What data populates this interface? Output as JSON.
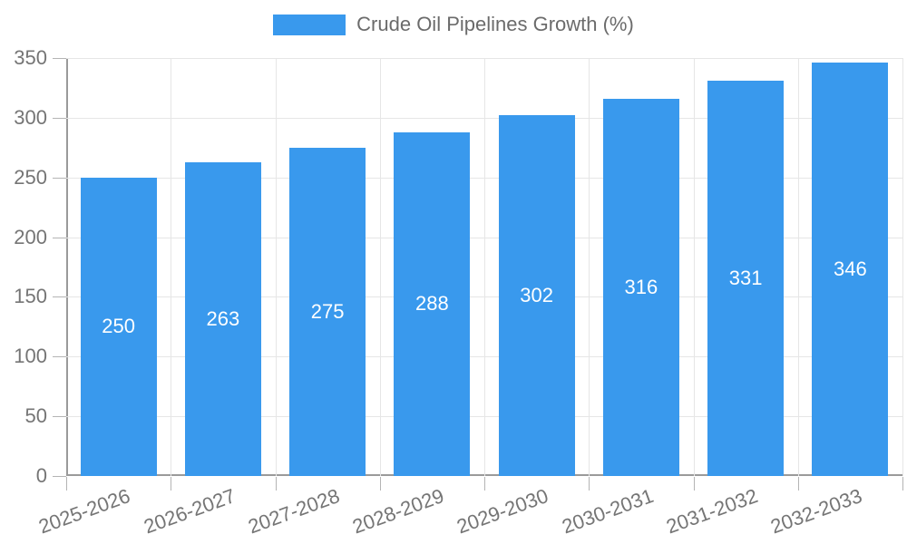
{
  "chart_data": {
    "type": "bar",
    "title": "Crude Oil Pipelines Growth (%)",
    "categories": [
      "2025-2026",
      "2026-2027",
      "2027-2028",
      "2028-2029",
      "2029-2030",
      "2030-2031",
      "2031-2032",
      "2032-2033"
    ],
    "values": [
      250,
      263,
      275,
      288,
      302,
      316,
      331,
      346
    ],
    "xlabel": "",
    "ylabel": "",
    "ylim": [
      0,
      350
    ],
    "ytick_step": 50,
    "yticks": [
      0,
      50,
      100,
      150,
      200,
      250,
      300,
      350
    ],
    "grid": true,
    "legend_position": "top",
    "colors": {
      "bar": "#3999ED",
      "value_label": "#ffffff",
      "axis_text": "#757575",
      "legend_text": "#6b6b6b",
      "gridline": "#e6e6e6",
      "axis_line": "#9a9a9a",
      "tick": "#b4b4b4",
      "background": "#ffffff"
    }
  }
}
